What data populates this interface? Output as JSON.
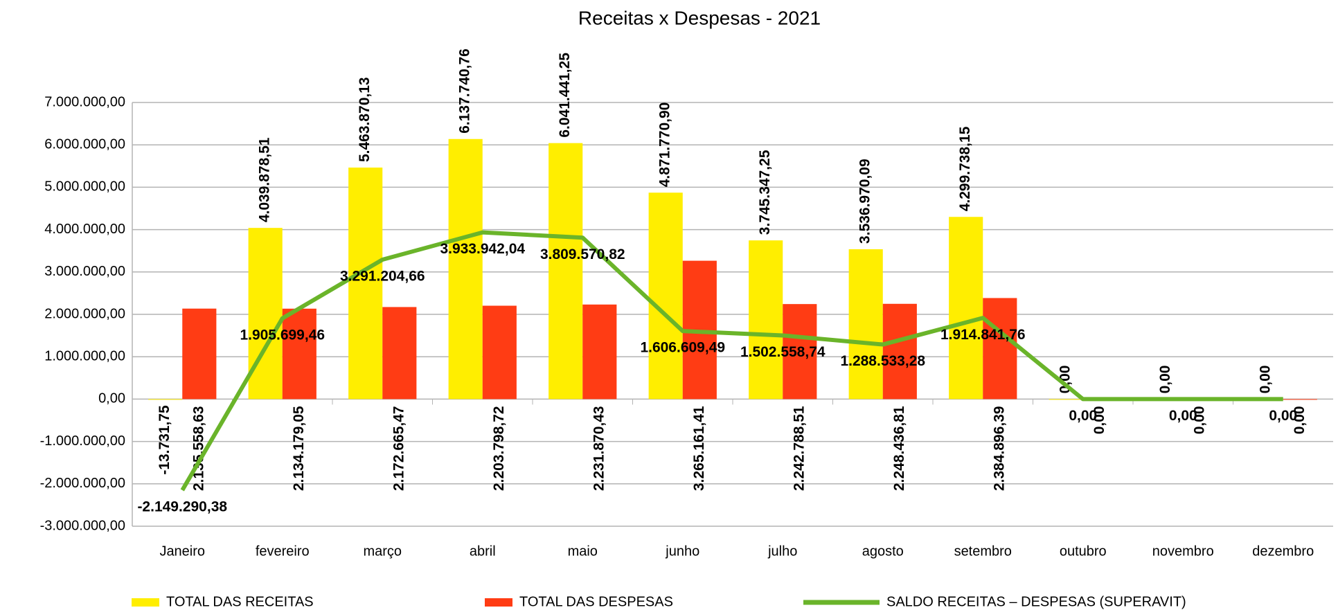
{
  "chart_data": {
    "type": "bar-line",
    "title": "Receitas x Despesas - 2021",
    "categories": [
      "Janeiro",
      "fevereiro",
      "março",
      "abril",
      "maio",
      "junho",
      "julho",
      "agosto",
      "setembro",
      "outubro",
      "novembro",
      "dezembro"
    ],
    "series": [
      {
        "name": "TOTAL DAS RECEITAS",
        "type": "bar",
        "color": "#ffee00",
        "values": [
          -13731.75,
          4039878.51,
          5463870.13,
          6137740.76,
          6041441.25,
          4871770.9,
          3745347.25,
          3536970.09,
          4299738.15,
          0,
          0,
          0
        ],
        "value_labels": [
          "-13.731,75",
          "4.039.878,51",
          "5.463.870,13",
          "6.137.740,76",
          "6.041.441,25",
          "4.871.770,90",
          "3.745.347,25",
          "3.536.970,09",
          "4.299.738,15",
          "0,00",
          "0,00",
          "0,00"
        ]
      },
      {
        "name": "TOTAL DAS DESPESAS",
        "type": "bar",
        "color": "#ff3c14",
        "values": [
          2135558.63,
          2134179.05,
          2172665.47,
          2203798.72,
          2231870.43,
          3265161.41,
          2242788.51,
          2248436.81,
          2384896.39,
          0,
          0,
          0
        ],
        "value_labels": [
          "2.135.558,63",
          "2.134.179,05",
          "2.172.665,47",
          "2.203.798,72",
          "2.231.870,43",
          "3.265.161,41",
          "2.242.788,51",
          "2.248.436,81",
          "2.384.896,39",
          "0,00",
          "0,00",
          "0,00"
        ]
      },
      {
        "name": "SALDO RECEITAS – DESPESAS (SUPERAVIT)",
        "type": "line",
        "color": "#6ab42a",
        "values": [
          -2149290.38,
          1905699.46,
          3291204.66,
          3933942.04,
          3809570.82,
          1606609.49,
          1502558.74,
          1288533.28,
          1914841.76,
          0,
          0,
          0
        ],
        "value_labels": [
          "-2.149.290,38",
          "1.905.699,46",
          "3.291.204,66",
          "3.933.942,04",
          "3.809.570,82",
          "1.606.609,49",
          "1.502.558,74",
          "1.288.533,28",
          "1.914.841,76",
          "0,00",
          "0,00",
          "0,00"
        ]
      }
    ],
    "ylim": [
      -3000000,
      7000000
    ],
    "yticks": [
      {
        "value": -3000000,
        "label": "-3.000.000,00"
      },
      {
        "value": -2000000,
        "label": "-2.000.000,00"
      },
      {
        "value": -1000000,
        "label": "-1.000.000,00"
      },
      {
        "value": 0,
        "label": "0,00"
      },
      {
        "value": 1000000,
        "label": "1.000.000,00"
      },
      {
        "value": 2000000,
        "label": "2.000.000,00"
      },
      {
        "value": 3000000,
        "label": "3.000.000,00"
      },
      {
        "value": 4000000,
        "label": "4.000.000,00"
      },
      {
        "value": 5000000,
        "label": "5.000.000,00"
      },
      {
        "value": 6000000,
        "label": "6.000.000,00"
      },
      {
        "value": 7000000,
        "label": "7.000.000,00"
      }
    ],
    "grid": true,
    "legend": "bottom"
  }
}
